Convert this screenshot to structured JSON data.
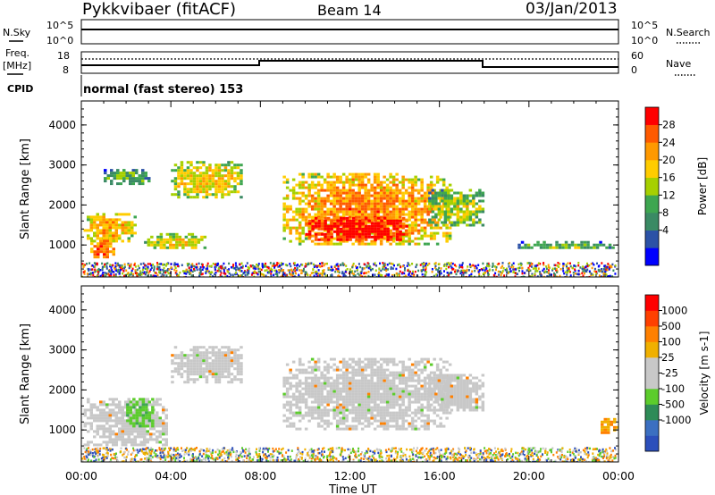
{
  "header": {
    "title": "Pykkvibaer (fitACF)",
    "beam": "Beam 14",
    "date": "03/Jan/2013"
  },
  "noise_panel": {
    "left_label": "N.Sky",
    "right_label": "N.Search",
    "left_ticks": [
      "10^5",
      "10^0"
    ],
    "right_ticks": [
      "10^5",
      "10^0"
    ]
  },
  "freq_panel": {
    "left_label_1": "Freq.",
    "left_label_2": "[MHz]",
    "right_label": "Nave",
    "left_ticks": [
      "18",
      "8"
    ],
    "right_ticks": [
      "60",
      "0"
    ]
  },
  "cpid_panel": {
    "label": "CPID",
    "program": "normal (fast stereo) 153"
  },
  "x_axis": {
    "label": "Time UT",
    "ticks": [
      "00:00",
      "04:00",
      "08:00",
      "12:00",
      "16:00",
      "20:00",
      "00:00"
    ]
  },
  "colors": {
    "power_scale": [
      "#0000ff",
      "#2c52a6",
      "#3a8a64",
      "#3ea650",
      "#a6d000",
      "#ffcc00",
      "#ff9900",
      "#ff5a00",
      "#ff0000"
    ],
    "velocity_scale": [
      "#2c4fbb",
      "#3b6fc1",
      "#2e8b57",
      "#5ccc2c",
      "#c8c8c8",
      "#c8c8c8",
      "#f0b000",
      "#ff8000",
      "#ff4000",
      "#ff0000"
    ]
  },
  "chart_data": [
    {
      "type": "heatmap",
      "name": "power",
      "ylabel": "Slant Range [km]",
      "ylim": [
        200,
        4600
      ],
      "yticks": [
        1000,
        2000,
        3000,
        4000
      ],
      "colorbar_label": "Power [dB]",
      "colorbar_ticks": [
        "28",
        "24",
        "20",
        "16",
        "12",
        "8",
        "4"
      ],
      "xlim_hours": [
        0,
        24
      ],
      "regions": [
        {
          "t0": 0.1,
          "t1": 2.4,
          "r0": 1100,
          "r1": 1800,
          "level": 0.55
        },
        {
          "t0": 0.4,
          "t1": 1.4,
          "r0": 700,
          "r1": 1200,
          "level": 0.7
        },
        {
          "t0": 2.8,
          "t1": 5.5,
          "r0": 900,
          "r1": 1300,
          "level": 0.45
        },
        {
          "t0": 4.0,
          "t1": 7.2,
          "r0": 2200,
          "r1": 3100,
          "level": 0.5
        },
        {
          "t0": 1.0,
          "t1": 3.0,
          "r0": 2500,
          "r1": 2900,
          "level": 0.3
        },
        {
          "t0": 9.0,
          "t1": 16.5,
          "r0": 1000,
          "r1": 2800,
          "level": 0.6
        },
        {
          "t0": 10.0,
          "t1": 14.5,
          "r0": 1100,
          "r1": 1700,
          "level": 0.9
        },
        {
          "t0": 15.5,
          "t1": 18.0,
          "r0": 1500,
          "r1": 2400,
          "level": 0.4
        },
        {
          "t0": 19.5,
          "t1": 23.8,
          "r0": 900,
          "r1": 1100,
          "level": 0.3
        }
      ]
    },
    {
      "type": "heatmap",
      "name": "velocity",
      "ylabel": "Slant Range [km]",
      "ylim": [
        200,
        4600
      ],
      "yticks": [
        1000,
        2000,
        3000,
        4000
      ],
      "colorbar_label": "Velocity [m s-1]",
      "colorbar_ticks": [
        "1000",
        "500",
        "100",
        "25",
        "-25",
        "-100",
        "-500",
        "-1000"
      ],
      "xlim_hours": [
        0,
        24
      ],
      "regions": [
        {
          "t0": 0.1,
          "t1": 3.8,
          "r0": 600,
          "r1": 1800,
          "level": 0.45
        },
        {
          "t0": 2.0,
          "t1": 3.2,
          "r0": 1100,
          "r1": 1800,
          "level": 0.65
        },
        {
          "t0": 4.0,
          "t1": 7.2,
          "r0": 2200,
          "r1": 3100,
          "level": 0.45
        },
        {
          "t0": 9.0,
          "t1": 16.5,
          "r0": 1000,
          "r1": 2800,
          "level": 0.45
        },
        {
          "t0": 15.5,
          "t1": 18.0,
          "r0": 1500,
          "r1": 2400,
          "level": 0.45
        },
        {
          "t0": 23.2,
          "t1": 23.9,
          "r0": 900,
          "r1": 1300,
          "level": 0.2
        }
      ]
    }
  ]
}
